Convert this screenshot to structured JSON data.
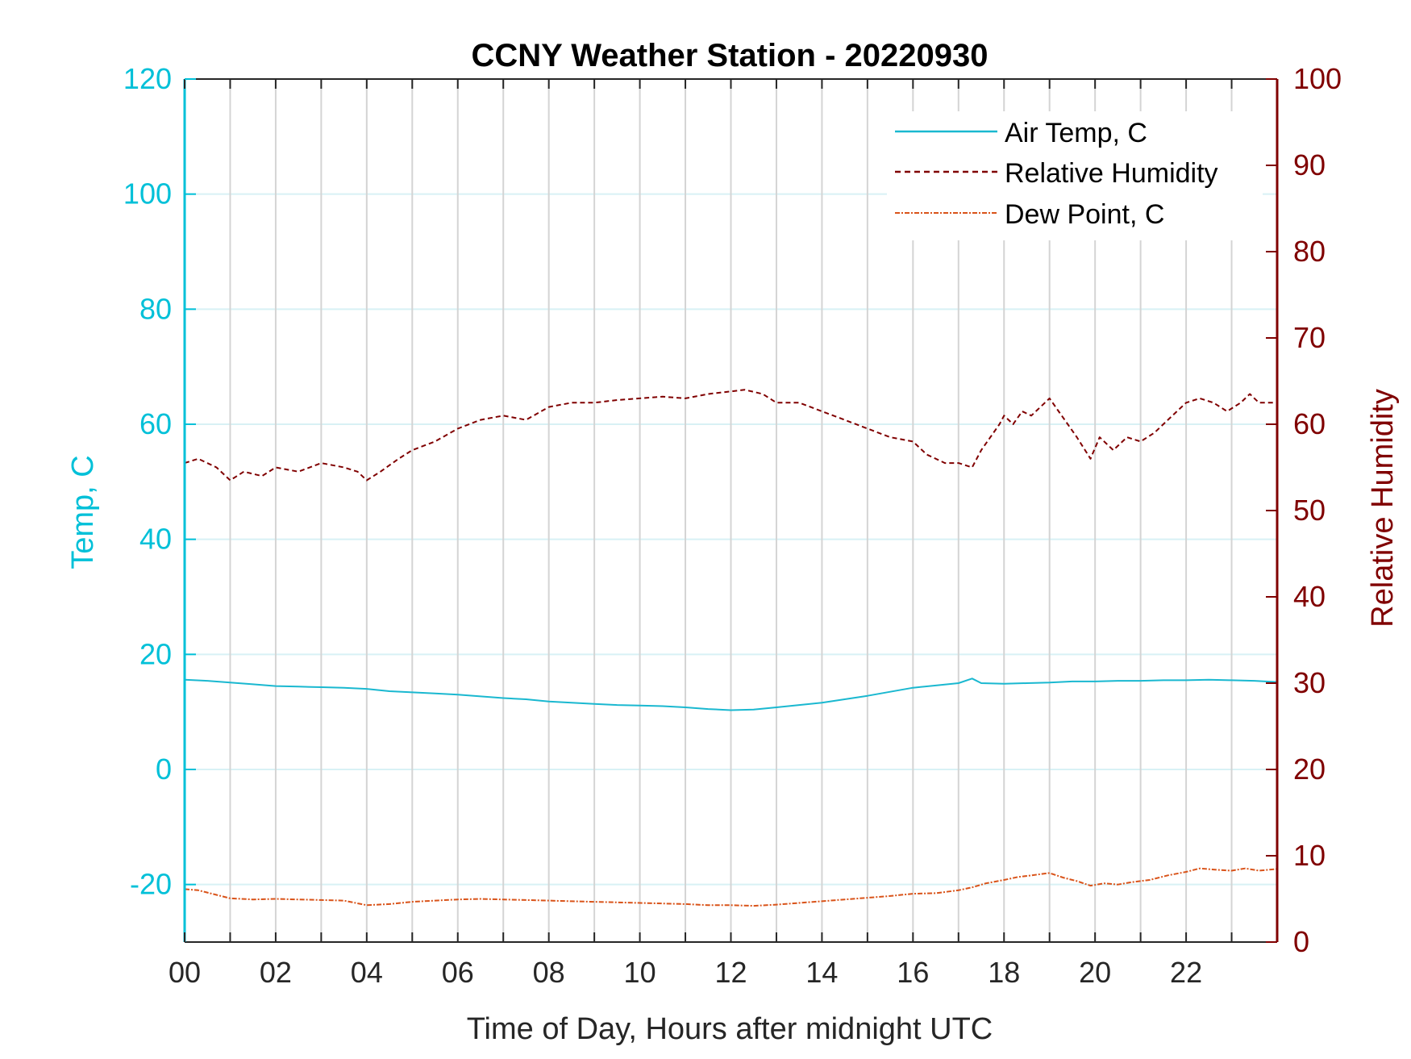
{
  "chart_data": {
    "type": "line",
    "title": "CCNY Weather Station - 20220930",
    "xlabel": "Time of Day, Hours after midnight UTC",
    "ylabel_left": "Temp, C",
    "ylabel_right": "Relative Humidity",
    "xlim": [
      0,
      24
    ],
    "ylim_left": [
      -30,
      120
    ],
    "ylim_right": [
      0,
      100
    ],
    "x_ticks": [
      0,
      2,
      4,
      6,
      8,
      10,
      12,
      14,
      16,
      18,
      20,
      22
    ],
    "x_tick_labels": [
      "00",
      "02",
      "04",
      "06",
      "08",
      "10",
      "12",
      "14",
      "16",
      "18",
      "20",
      "22"
    ],
    "y_left_ticks": [
      -20,
      0,
      20,
      40,
      60,
      80,
      100,
      120
    ],
    "y_left_tick_labels": [
      "-20",
      "0",
      "20",
      "40",
      "60",
      "80",
      "100",
      "120"
    ],
    "y_right_ticks": [
      0,
      10,
      20,
      30,
      40,
      50,
      60,
      70,
      80,
      90,
      100
    ],
    "y_right_tick_labels": [
      "0",
      "10",
      "20",
      "30",
      "40",
      "50",
      "60",
      "70",
      "80",
      "90",
      "100"
    ],
    "grid": true,
    "legend_position": "top-right",
    "colors": {
      "left_axis": "#00c0d8",
      "right_axis": "#800000",
      "air_temp": "#1ab8d0",
      "humidity": "#800000",
      "dew_point": "#d95319",
      "vgrid": "#d4d4d4",
      "hgrid": "#d8f1f5"
    },
    "series": [
      {
        "name": "Air Temp, C",
        "axis": "left",
        "style": "solid",
        "x": [
          0,
          0.5,
          1,
          1.5,
          2,
          2.5,
          3,
          3.5,
          4,
          4.5,
          5,
          5.5,
          6,
          6.5,
          7,
          7.5,
          8,
          8.5,
          9,
          9.5,
          10,
          10.5,
          11,
          11.5,
          12,
          12.5,
          13,
          13.5,
          14,
          14.5,
          15,
          15.5,
          16,
          16.5,
          17,
          17.3,
          17.5,
          18,
          18.5,
          19,
          19.5,
          20,
          20.5,
          21,
          21.5,
          22,
          22.5,
          23,
          23.5,
          24
        ],
        "y": [
          15.6,
          15.4,
          15.1,
          14.8,
          14.5,
          14.4,
          14.3,
          14.2,
          14.0,
          13.6,
          13.4,
          13.2,
          13.0,
          12.7,
          12.4,
          12.2,
          11.8,
          11.6,
          11.4,
          11.2,
          11.1,
          11.0,
          10.8,
          10.5,
          10.3,
          10.4,
          10.8,
          11.2,
          11.6,
          12.2,
          12.8,
          13.5,
          14.2,
          14.6,
          15.0,
          15.8,
          15.0,
          14.9,
          15.0,
          15.1,
          15.3,
          15.3,
          15.4,
          15.4,
          15.5,
          15.5,
          15.6,
          15.5,
          15.4,
          15.2
        ]
      },
      {
        "name": "Relative Humidity",
        "axis": "right",
        "style": "dashed",
        "x": [
          0,
          0.3,
          0.7,
          1,
          1.3,
          1.7,
          2,
          2.5,
          3,
          3.5,
          3.8,
          4,
          4.3,
          4.7,
          5,
          5.5,
          6,
          6.5,
          7,
          7.5,
          8,
          8.5,
          9,
          9.5,
          10,
          10.5,
          11,
          11.5,
          12,
          12.3,
          12.7,
          13,
          13.5,
          14,
          14.5,
          15,
          15.5,
          16,
          16.3,
          16.7,
          17,
          17.3,
          17.5,
          17.7,
          17.9,
          18,
          18.2,
          18.4,
          18.6,
          18.8,
          19,
          19.2,
          19.4,
          19.6,
          19.9,
          20.1,
          20.4,
          20.7,
          21,
          21.3,
          21.6,
          22,
          22.3,
          22.6,
          22.9,
          23.2,
          23.4,
          23.6,
          24
        ],
        "y": [
          55.5,
          56.0,
          55.0,
          53.5,
          54.5,
          54.0,
          55.0,
          54.5,
          55.5,
          55.0,
          54.5,
          53.5,
          54.5,
          56.0,
          57.0,
          58.0,
          59.5,
          60.5,
          61.0,
          60.5,
          62.0,
          62.5,
          62.5,
          62.8,
          63.0,
          63.2,
          63.0,
          63.5,
          63.8,
          64.0,
          63.5,
          62.5,
          62.5,
          61.5,
          60.5,
          59.5,
          58.5,
          58.0,
          56.5,
          55.5,
          55.5,
          55.0,
          57.0,
          58.5,
          60.0,
          61.0,
          60.0,
          61.5,
          61.0,
          62.0,
          63.0,
          61.5,
          60.0,
          58.5,
          56.0,
          58.5,
          57.0,
          58.5,
          58.0,
          59.0,
          60.5,
          62.5,
          63.0,
          62.5,
          61.5,
          62.5,
          63.5,
          62.5,
          62.5
        ]
      },
      {
        "name": "Dew Point, C",
        "axis": "left",
        "style": "dash-dot",
        "x": [
          0,
          0.3,
          0.7,
          1,
          1.5,
          2,
          2.5,
          3,
          3.5,
          4,
          4.5,
          5,
          5.5,
          6,
          6.5,
          7,
          7.5,
          8,
          8.5,
          9,
          9.5,
          10,
          10.5,
          11,
          11.5,
          12,
          12.5,
          13,
          13.5,
          14,
          14.5,
          15,
          15.5,
          16,
          16.5,
          17,
          17.3,
          17.6,
          18,
          18.3,
          18.6,
          19,
          19.3,
          19.6,
          19.9,
          20.2,
          20.5,
          20.8,
          21.2,
          21.6,
          22,
          22.3,
          22.6,
          23,
          23.3,
          23.6,
          24
        ],
        "y": [
          -20.8,
          -21.0,
          -21.8,
          -22.4,
          -22.6,
          -22.5,
          -22.6,
          -22.7,
          -22.8,
          -23.6,
          -23.4,
          -23.0,
          -22.8,
          -22.6,
          -22.5,
          -22.6,
          -22.7,
          -22.8,
          -22.9,
          -23.0,
          -23.1,
          -23.2,
          -23.3,
          -23.4,
          -23.6,
          -23.6,
          -23.7,
          -23.5,
          -23.2,
          -22.9,
          -22.6,
          -22.3,
          -22.0,
          -21.6,
          -21.5,
          -21.0,
          -20.5,
          -19.8,
          -19.2,
          -18.7,
          -18.4,
          -18.0,
          -18.8,
          -19.4,
          -20.2,
          -19.8,
          -20.0,
          -19.6,
          -19.2,
          -18.4,
          -17.8,
          -17.2,
          -17.4,
          -17.6,
          -17.2,
          -17.6,
          -17.3
        ]
      }
    ]
  }
}
